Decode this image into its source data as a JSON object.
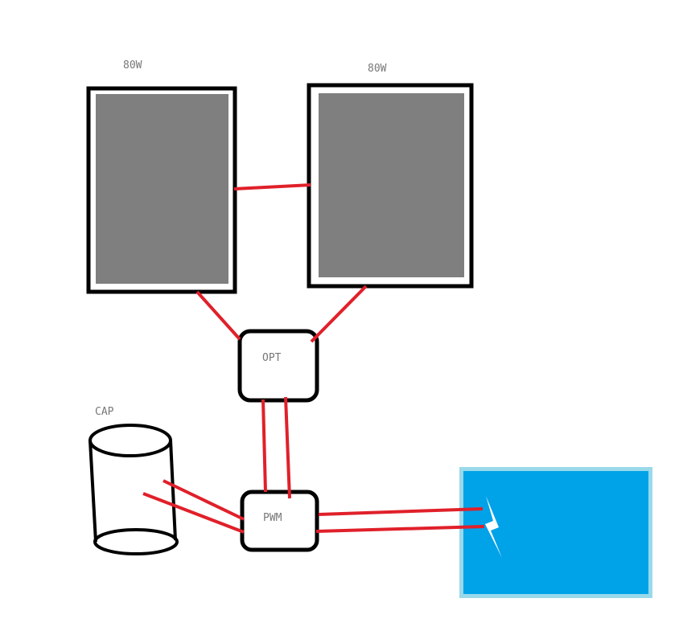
{
  "panels": [
    {
      "label": "80W"
    },
    {
      "label": "80W"
    }
  ],
  "optimizer": {
    "label": "OPT"
  },
  "controller": {
    "label": "PWM"
  },
  "capacitor": {
    "label": "CAP"
  },
  "colors": {
    "wire": "#e0202a",
    "panel_fill": "#7f7f7f",
    "outline": "#000000",
    "load_fill": "#00a2e8",
    "load_border": "#99d9ea",
    "label_text": "#777777"
  },
  "icons": {
    "load_symbol": "lightning-bolt-icon"
  }
}
